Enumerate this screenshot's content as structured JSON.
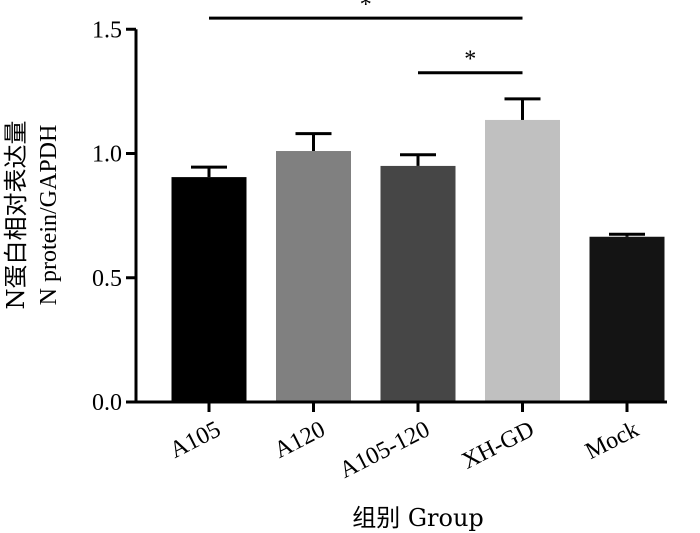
{
  "chart_data": {
    "type": "bar",
    "categories": [
      "A105",
      "A120",
      "A105-120",
      "XH-GD",
      "Mock"
    ],
    "values": [
      0.905,
      1.01,
      0.95,
      1.135,
      0.665
    ],
    "errors": [
      0.04,
      0.07,
      0.045,
      0.085,
      0.01
    ],
    "colors": [
      "#000000",
      "#808080",
      "#464646",
      "#c0c0c0",
      "#141414"
    ],
    "ylim": [
      0,
      1.5
    ],
    "yticks": [
      "0.0",
      "0.5",
      "1.0",
      "1.5"
    ],
    "ytick_values": [
      0,
      0.5,
      1.0,
      1.5
    ],
    "ylabel_cn": "N蛋白相对表达量",
    "ylabel_en": "N protein/GAPDH",
    "xlabel": "组别 Group",
    "significance": [
      {
        "from": "A105",
        "to": "XH-GD",
        "label": "*",
        "level": 1.545
      },
      {
        "from": "A105-120",
        "to": "XH-GD",
        "label": "*",
        "level": 1.325
      }
    ]
  }
}
